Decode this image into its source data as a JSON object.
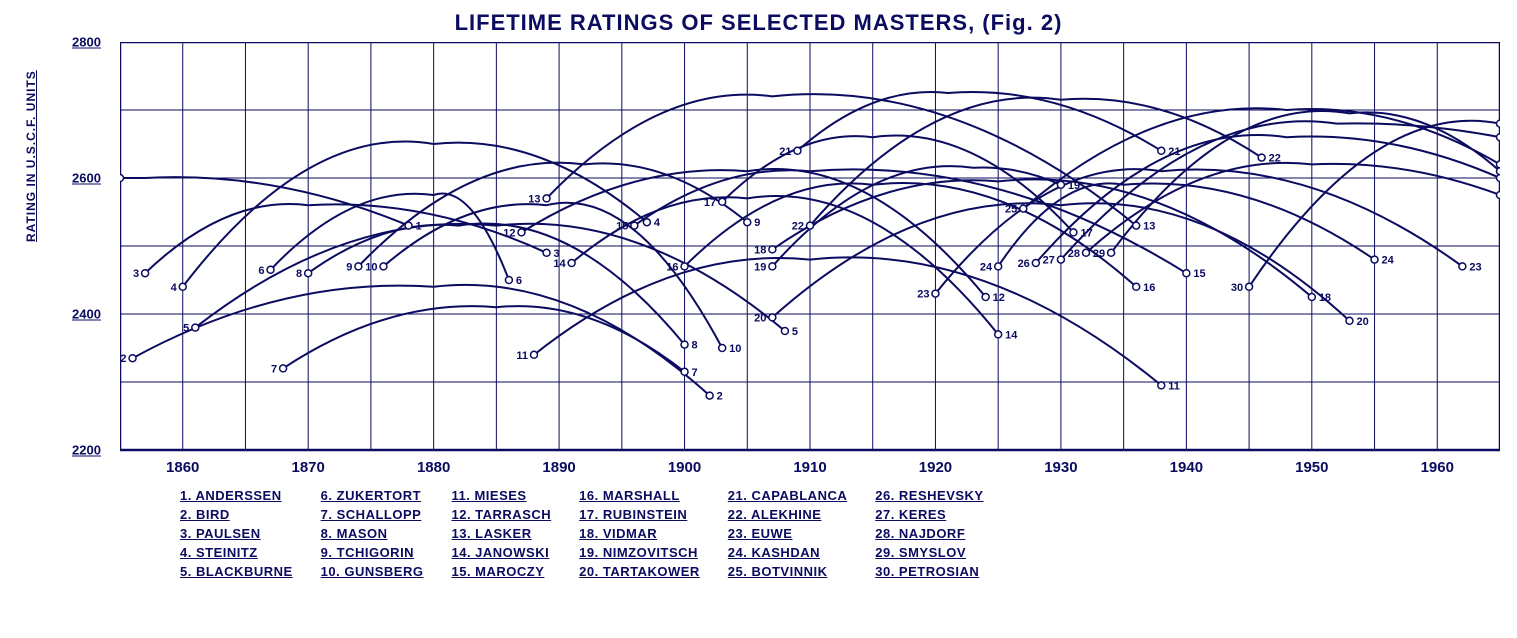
{
  "title": "LIFETIME RATINGS OF SELECTED MASTERS, (Fig. 2)",
  "ylabel": "RATING IN U.S.C.F. UNITS",
  "colors": {
    "ink": "#0b0b60",
    "bg": "#ffffff"
  },
  "chart": {
    "type": "multi-parabola-line",
    "xlim": [
      1855,
      1965
    ],
    "ylim": [
      2200,
      2800
    ],
    "xticks": [
      1860,
      1870,
      1880,
      1890,
      1900,
      1910,
      1920,
      1930,
      1940,
      1950,
      1960
    ],
    "yticks": [
      2200,
      2400,
      2600,
      2800
    ],
    "minor_y_grid": [
      2300,
      2500,
      2700
    ],
    "grid_color": "#0b0b60",
    "line_color": "#0b0b60",
    "line_width": 2,
    "marker": "hollow-circle",
    "marker_size": 3.5,
    "title_fontsize": 22,
    "label_fontsize": 12
  },
  "series": [
    {
      "n": 1,
      "start": [
        1855,
        2600,
        "s"
      ],
      "peak": [
        1857,
        2600
      ],
      "end": [
        1878,
        2530,
        ""
      ],
      "name": "ANDERSSEN"
    },
    {
      "n": 2,
      "start": [
        1856,
        2335,
        "s"
      ],
      "peak": [
        1880,
        2440
      ],
      "end": [
        1902,
        2280,
        ""
      ],
      "name": "BIRD"
    },
    {
      "n": 3,
      "start": [
        1857,
        2460,
        "s"
      ],
      "peak": [
        1870,
        2560
      ],
      "end": [
        1889,
        2490,
        ""
      ],
      "name": "PAULSEN"
    },
    {
      "n": 4,
      "start": [
        1860,
        2440,
        "s"
      ],
      "peak": [
        1880,
        2650
      ],
      "end": [
        1897,
        2535,
        ""
      ],
      "name": "STEINITZ"
    },
    {
      "n": 5,
      "start": [
        1861,
        2380,
        "s"
      ],
      "peak": [
        1885,
        2530
      ],
      "end": [
        1908,
        2375,
        ""
      ],
      "name": "BLACKBURNE"
    },
    {
      "n": 6,
      "start": [
        1867,
        2465,
        "s"
      ],
      "peak": [
        1880,
        2575
      ],
      "end": [
        1886,
        2450,
        ""
      ],
      "name": "ZUKERTORT"
    },
    {
      "n": 7,
      "start": [
        1868,
        2320,
        "s"
      ],
      "peak": [
        1885,
        2410
      ],
      "end": [
        1900,
        2315,
        ""
      ],
      "name": "SCHALLOPP"
    },
    {
      "n": 8,
      "start": [
        1870,
        2460,
        "s"
      ],
      "peak": [
        1882,
        2530
      ],
      "end": [
        1900,
        2355,
        ""
      ],
      "name": "MASON"
    },
    {
      "n": 9,
      "start": [
        1874,
        2470,
        "s"
      ],
      "peak": [
        1892,
        2620
      ],
      "end": [
        1905,
        2535,
        ""
      ],
      "name": "TCHIGORIN"
    },
    {
      "n": 10,
      "start": [
        1876,
        2470,
        "s"
      ],
      "peak": [
        1889,
        2560
      ],
      "end": [
        1903,
        2350,
        ""
      ],
      "name": "GUNSBERG"
    },
    {
      "n": 11,
      "start": [
        1888,
        2340,
        "s"
      ],
      "peak": [
        1910,
        2480
      ],
      "end": [
        1938,
        2295,
        ""
      ],
      "name": "MIESES"
    },
    {
      "n": 12,
      "start": [
        1887,
        2520,
        "s"
      ],
      "peak": [
        1905,
        2610
      ],
      "end": [
        1924,
        2425,
        ""
      ],
      "name": "TARRASCH"
    },
    {
      "n": 13,
      "start": [
        1889,
        2570,
        "s"
      ],
      "peak": [
        1907,
        2720
      ],
      "end": [
        1936,
        2530,
        ""
      ],
      "name": "LASKER"
    },
    {
      "n": 14,
      "start": [
        1891,
        2475,
        "s"
      ],
      "peak": [
        1905,
        2570
      ],
      "end": [
        1925,
        2370,
        ""
      ],
      "name": "JANOWSKI"
    },
    {
      "n": 15,
      "start": [
        1896,
        2530,
        "s"
      ],
      "peak": [
        1910,
        2610
      ],
      "end": [
        1940,
        2460,
        ""
      ],
      "name": "MAROCZY"
    },
    {
      "n": 16,
      "start": [
        1900,
        2470,
        "s"
      ],
      "peak": [
        1915,
        2590
      ],
      "end": [
        1936,
        2440,
        ""
      ],
      "name": "MARSHALL"
    },
    {
      "n": 17,
      "start": [
        1903,
        2565,
        "s"
      ],
      "peak": [
        1915,
        2660
      ],
      "end": [
        1931,
        2520,
        ""
      ],
      "name": "RUBINSTEIN"
    },
    {
      "n": 18,
      "start": [
        1907,
        2495,
        "s"
      ],
      "peak": [
        1925,
        2595
      ],
      "end": [
        1950,
        2425,
        ""
      ],
      "name": "VIDMAR"
    },
    {
      "n": 19,
      "start": [
        1907,
        2470,
        "s"
      ],
      "peak": [
        1923,
        2615
      ],
      "end": [
        1930,
        2590,
        ""
      ],
      "name": "NIMZOVITSCH"
    },
    {
      "n": 20,
      "start": [
        1907,
        2395,
        "s"
      ],
      "peak": [
        1930,
        2560
      ],
      "end": [
        1953,
        2390,
        ""
      ],
      "name": "TARTAKOWER"
    },
    {
      "n": 21,
      "start": [
        1909,
        2640,
        "s"
      ],
      "peak": [
        1921,
        2725
      ],
      "end": [
        1938,
        2640,
        ""
      ],
      "name": "CAPABLANCA"
    },
    {
      "n": 22,
      "start": [
        1910,
        2530,
        "s"
      ],
      "peak": [
        1930,
        2715
      ],
      "end": [
        1946,
        2630,
        ""
      ],
      "name": "ALEKHINE"
    },
    {
      "n": 23,
      "start": [
        1920,
        2430,
        "s"
      ],
      "peak": [
        1938,
        2610
      ],
      "end": [
        1962,
        2470,
        ""
      ],
      "name": "EUWE"
    },
    {
      "n": 24,
      "start": [
        1925,
        2470,
        "s"
      ],
      "peak": [
        1935,
        2590
      ],
      "end": [
        1955,
        2480,
        ""
      ],
      "name": "KASHDAN"
    },
    {
      "n": 25,
      "start": [
        1927,
        2555,
        "s"
      ],
      "peak": [
        1948,
        2700
      ],
      "end": [
        1965,
        2620,
        "e"
      ],
      "name": "BOTVINNIK"
    },
    {
      "n": 26,
      "start": [
        1928,
        2475,
        "s"
      ],
      "peak": [
        1948,
        2660
      ],
      "end": [
        1965,
        2600,
        "e"
      ],
      "name": "RESHEVSKY"
    },
    {
      "n": 27,
      "start": [
        1930,
        2480,
        "s"
      ],
      "peak": [
        1952,
        2680
      ],
      "end": [
        1965,
        2660,
        "e"
      ],
      "name": "KERES"
    },
    {
      "n": 28,
      "start": [
        1932,
        2490,
        "s"
      ],
      "peak": [
        1950,
        2620
      ],
      "end": [
        1965,
        2575,
        "e"
      ],
      "name": "NAJDORF"
    },
    {
      "n": 29,
      "start": [
        1934,
        2490,
        "s"
      ],
      "peak": [
        1953,
        2695
      ],
      "end": [
        1965,
        2610,
        "e"
      ],
      "name": "SMYSLOV"
    },
    {
      "n": 30,
      "start": [
        1945,
        2440,
        "s"
      ],
      "peak": [
        1965,
        2680
      ],
      "end": [
        1965,
        2680,
        "e"
      ],
      "name": "PETROSIAN"
    }
  ],
  "legend_columns": [
    [
      [
        1,
        "ANDERSSEN"
      ],
      [
        2,
        "BIRD"
      ],
      [
        3,
        "PAULSEN"
      ],
      [
        4,
        "STEINITZ"
      ],
      [
        5,
        "BLACKBURNE"
      ]
    ],
    [
      [
        6,
        "ZUKERTORT"
      ],
      [
        7,
        "SCHALLOPP"
      ],
      [
        8,
        "MASON"
      ],
      [
        9,
        "TCHIGORIN"
      ],
      [
        10,
        "GUNSBERG"
      ]
    ],
    [
      [
        11,
        "MIESES"
      ],
      [
        12,
        "TARRASCH"
      ],
      [
        13,
        "LASKER"
      ],
      [
        14,
        "JANOWSKI"
      ],
      [
        15,
        "MAROCZY"
      ]
    ],
    [
      [
        16,
        "MARSHALL"
      ],
      [
        17,
        "RUBINSTEIN"
      ],
      [
        18,
        "VIDMAR"
      ],
      [
        19,
        "NIMZOVITSCH"
      ],
      [
        20,
        "TARTAKOWER"
      ]
    ],
    [
      [
        21,
        "CAPABLANCA"
      ],
      [
        22,
        "ALEKHINE"
      ],
      [
        23,
        "EUWE"
      ],
      [
        24,
        "KASHDAN"
      ],
      [
        25,
        "BOTVINNIK"
      ]
    ],
    [
      [
        26,
        "RESHEVSKY"
      ],
      [
        27,
        "KERES"
      ],
      [
        28,
        "NAJDORF"
      ],
      [
        29,
        "SMYSLOV"
      ],
      [
        30,
        "PETROSIAN"
      ]
    ]
  ]
}
